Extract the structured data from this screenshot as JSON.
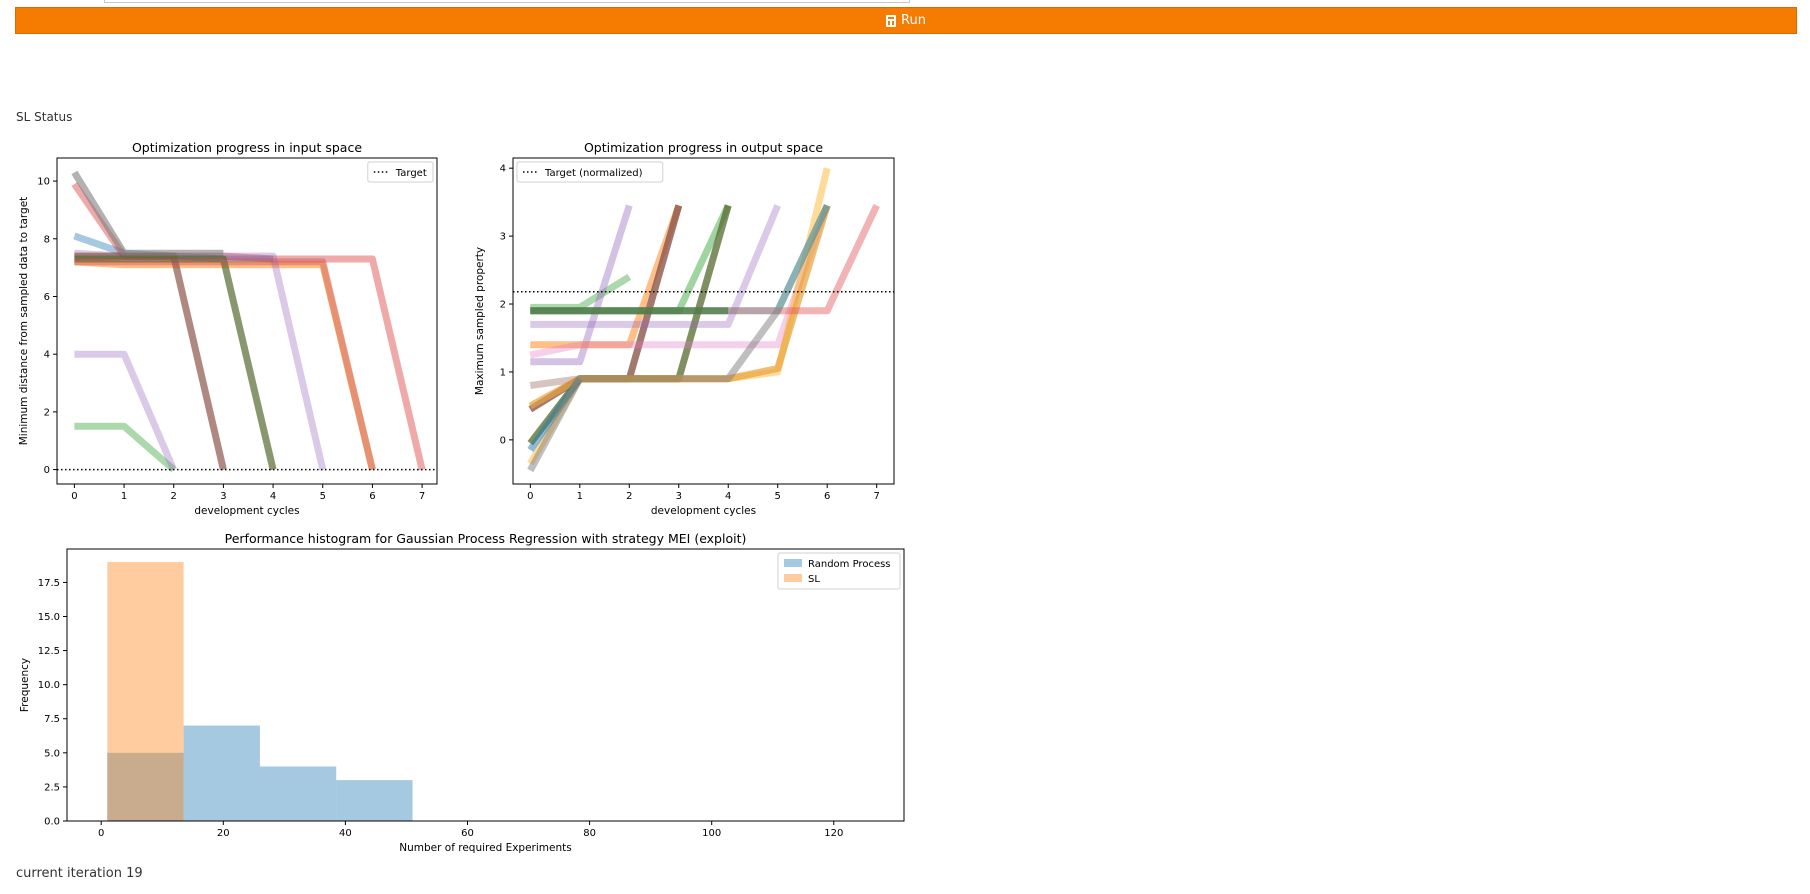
{
  "header": {
    "run_label": "Run"
  },
  "status": {
    "label": "SL Status"
  },
  "footer": {
    "iteration_text": "current iteration 19"
  },
  "chart_data": [
    {
      "type": "line",
      "title": "Optimization progress in input space",
      "xlabel": "development cycles",
      "ylabel": "Minimum distance from sampled data to target",
      "xlim": [
        -0.35,
        7.3
      ],
      "ylim": [
        -0.5,
        10.8
      ],
      "xticks": [
        0,
        1,
        2,
        3,
        4,
        5,
        6,
        7
      ],
      "yticks": [
        0,
        2,
        4,
        6,
        8,
        10
      ],
      "legend": {
        "position": "top-right",
        "entries": [
          "Target"
        ]
      },
      "target": 0,
      "series": [
        {
          "color": "#1f77b4",
          "alpha": 0.4,
          "x": [
            0,
            1,
            2,
            3,
            4
          ],
          "y": [
            8.1,
            7.5,
            7.4,
            7.3,
            7.3
          ]
        },
        {
          "color": "#ff7f0e",
          "alpha": 0.5,
          "x": [
            0,
            1,
            2,
            3,
            4,
            5,
            6
          ],
          "y": [
            7.2,
            7.1,
            7.1,
            7.1,
            7.1,
            7.1,
            0
          ]
        },
        {
          "color": "#2ca02c",
          "alpha": 0.4,
          "x": [
            0,
            1,
            2
          ],
          "y": [
            1.5,
            1.5,
            0
          ]
        },
        {
          "color": "#d62728",
          "alpha": 0.4,
          "x": [
            0,
            1,
            2,
            3,
            4,
            5,
            6,
            7
          ],
          "y": [
            9.9,
            7.4,
            7.4,
            7.4,
            7.3,
            7.3,
            7.3,
            0
          ]
        },
        {
          "color": "#9467bd",
          "alpha": 0.35,
          "x": [
            0,
            1,
            2
          ],
          "y": [
            4,
            4,
            0
          ]
        },
        {
          "color": "#9467bd",
          "alpha": 0.35,
          "x": [
            0,
            1,
            2,
            3,
            4,
            5
          ],
          "y": [
            7.5,
            7.4,
            7.4,
            7.4,
            7.4,
            0
          ]
        },
        {
          "color": "#8c564b",
          "alpha": 0.7,
          "x": [
            0,
            1,
            2,
            3
          ],
          "y": [
            7.4,
            7.4,
            7.4,
            0
          ]
        },
        {
          "color": "#7f7f7f",
          "alpha": 0.6,
          "x": [
            0,
            1,
            2,
            3
          ],
          "y": [
            10.3,
            7.5,
            7.5,
            7.5
          ]
        },
        {
          "color": "#556b2f",
          "alpha": 0.7,
          "x": [
            0,
            1,
            2,
            3,
            4
          ],
          "y": [
            7.3,
            7.3,
            7.3,
            7.3,
            0
          ]
        },
        {
          "color": "#c44e52",
          "alpha": 0.4,
          "x": [
            0,
            1,
            2,
            3,
            4,
            5,
            6
          ],
          "y": [
            7.2,
            7.2,
            7.2,
            7.2,
            7.2,
            7.2,
            0
          ]
        }
      ]
    },
    {
      "type": "line",
      "title": "Optimization progress in output space",
      "xlabel": "development cycles",
      "ylabel": "Maximum sampled property",
      "xlim": [
        -0.35,
        7.35
      ],
      "ylim": [
        -0.65,
        4.15
      ],
      "xticks": [
        0,
        1,
        2,
        3,
        4,
        5,
        6,
        7
      ],
      "yticks": [
        0,
        1,
        2,
        3,
        4
      ],
      "legend": {
        "position": "top-left",
        "entries": [
          "Target (normalized)"
        ]
      },
      "target": 2.18,
      "series": [
        {
          "color": "#2ca02c",
          "alpha": 0.4,
          "x": [
            0,
            1,
            2
          ],
          "y": [
            1.95,
            1.95,
            2.4
          ]
        },
        {
          "color": "#9467bd",
          "alpha": 0.4,
          "x": [
            0,
            1,
            2
          ],
          "y": [
            1.15,
            1.15,
            3.45
          ]
        },
        {
          "color": "#ff7f0e",
          "alpha": 0.5,
          "x": [
            0,
            1,
            2,
            3
          ],
          "y": [
            1.4,
            1.4,
            1.4,
            3.45
          ]
        },
        {
          "color": "#8c564b",
          "alpha": 0.35,
          "x": [
            0,
            1,
            2,
            3
          ],
          "y": [
            0.8,
            0.9,
            0.9,
            0.9
          ]
        },
        {
          "color": "#8c564b",
          "alpha": 0.8,
          "x": [
            0,
            1,
            2,
            3
          ],
          "y": [
            0.45,
            0.9,
            0.9,
            3.45
          ]
        },
        {
          "color": "#2ca02c",
          "alpha": 0.45,
          "x": [
            0,
            1,
            2,
            3,
            4
          ],
          "y": [
            1.9,
            1.9,
            1.9,
            1.9,
            3.45
          ]
        },
        {
          "color": "#556b2f",
          "alpha": 0.75,
          "x": [
            0,
            1,
            2,
            3,
            4
          ],
          "y": [
            -0.05,
            0.9,
            0.9,
            0.9,
            3.45
          ]
        },
        {
          "color": "#9467bd",
          "alpha": 0.35,
          "x": [
            0,
            1,
            2,
            3,
            4,
            5
          ],
          "y": [
            1.7,
            1.7,
            1.7,
            1.7,
            1.7,
            3.45
          ]
        },
        {
          "color": "#e377c2",
          "alpha": 0.35,
          "x": [
            0,
            1,
            2,
            3,
            4,
            5,
            6
          ],
          "y": [
            1.25,
            1.4,
            1.4,
            1.4,
            1.4,
            1.4,
            3.45
          ]
        },
        {
          "color": "#ffa500",
          "alpha": 0.4,
          "x": [
            0,
            1,
            2,
            3,
            4,
            5,
            6
          ],
          "y": [
            -0.35,
            0.9,
            0.9,
            0.9,
            0.9,
            1.0,
            4.0
          ]
        },
        {
          "color": "#e8a33c",
          "alpha": 0.7,
          "x": [
            0,
            1,
            2,
            3,
            4,
            5,
            6
          ],
          "y": [
            0.5,
            0.9,
            0.9,
            0.9,
            0.9,
            1.05,
            3.45
          ]
        },
        {
          "color": "#17becf",
          "alpha": 0.45,
          "x": [
            0,
            1,
            2,
            3,
            4,
            5,
            6
          ],
          "y": [
            1.9,
            1.9,
            1.9,
            1.9,
            1.9,
            1.9,
            3.45
          ]
        },
        {
          "color": "#e15759",
          "alpha": 0.45,
          "x": [
            0,
            1,
            2,
            3,
            4,
            5,
            6,
            7
          ],
          "y": [
            1.9,
            1.9,
            1.9,
            1.9,
            1.9,
            1.9,
            1.9,
            3.45
          ]
        },
        {
          "color": "#2e7d32",
          "alpha": 0.6,
          "x": [
            0,
            1,
            2,
            3,
            4
          ],
          "y": [
            1.9,
            1.9,
            1.9,
            1.9,
            1.9
          ]
        },
        {
          "color": "#1f77b4",
          "alpha": 0.5,
          "x": [
            0,
            1
          ],
          "y": [
            -0.15,
            0.9
          ]
        },
        {
          "color": "#7f7f7f",
          "alpha": 0.5,
          "x": [
            0,
            1,
            2,
            3,
            4,
            5,
            6
          ],
          "y": [
            -0.45,
            0.9,
            0.9,
            0.9,
            0.9,
            1.9,
            3.45
          ]
        }
      ]
    },
    {
      "type": "bar",
      "title": "Performance histogram for Gaussian Process Regression with strategy MEI (exploit)",
      "xlabel": "Number of required Experiments",
      "ylabel": "Frequency",
      "xlim": [
        -5.6,
        131.5
      ],
      "ylim": [
        0,
        19.95
      ],
      "xticks": [
        0,
        20,
        40,
        60,
        80,
        100,
        120
      ],
      "yticks": [
        "0.0",
        "2.5",
        "5.0",
        "7.5",
        "10.0",
        "12.5",
        "15.0",
        "17.5"
      ],
      "legend": {
        "position": "top-right",
        "entries": [
          "Random Process",
          "SL"
        ]
      },
      "series": [
        {
          "name": "Random Process",
          "color": "#1f77b4",
          "alpha": 0.4,
          "bins": [
            [
              1,
              13.5,
              5
            ],
            [
              13.5,
              26,
              7
            ],
            [
              26,
              38.5,
              4
            ],
            [
              38.5,
              51,
              3
            ]
          ]
        },
        {
          "name": "SL",
          "color": "#ff7f0e",
          "alpha": 0.4,
          "bins": [
            [
              1,
              13.5,
              19
            ]
          ]
        }
      ]
    }
  ]
}
